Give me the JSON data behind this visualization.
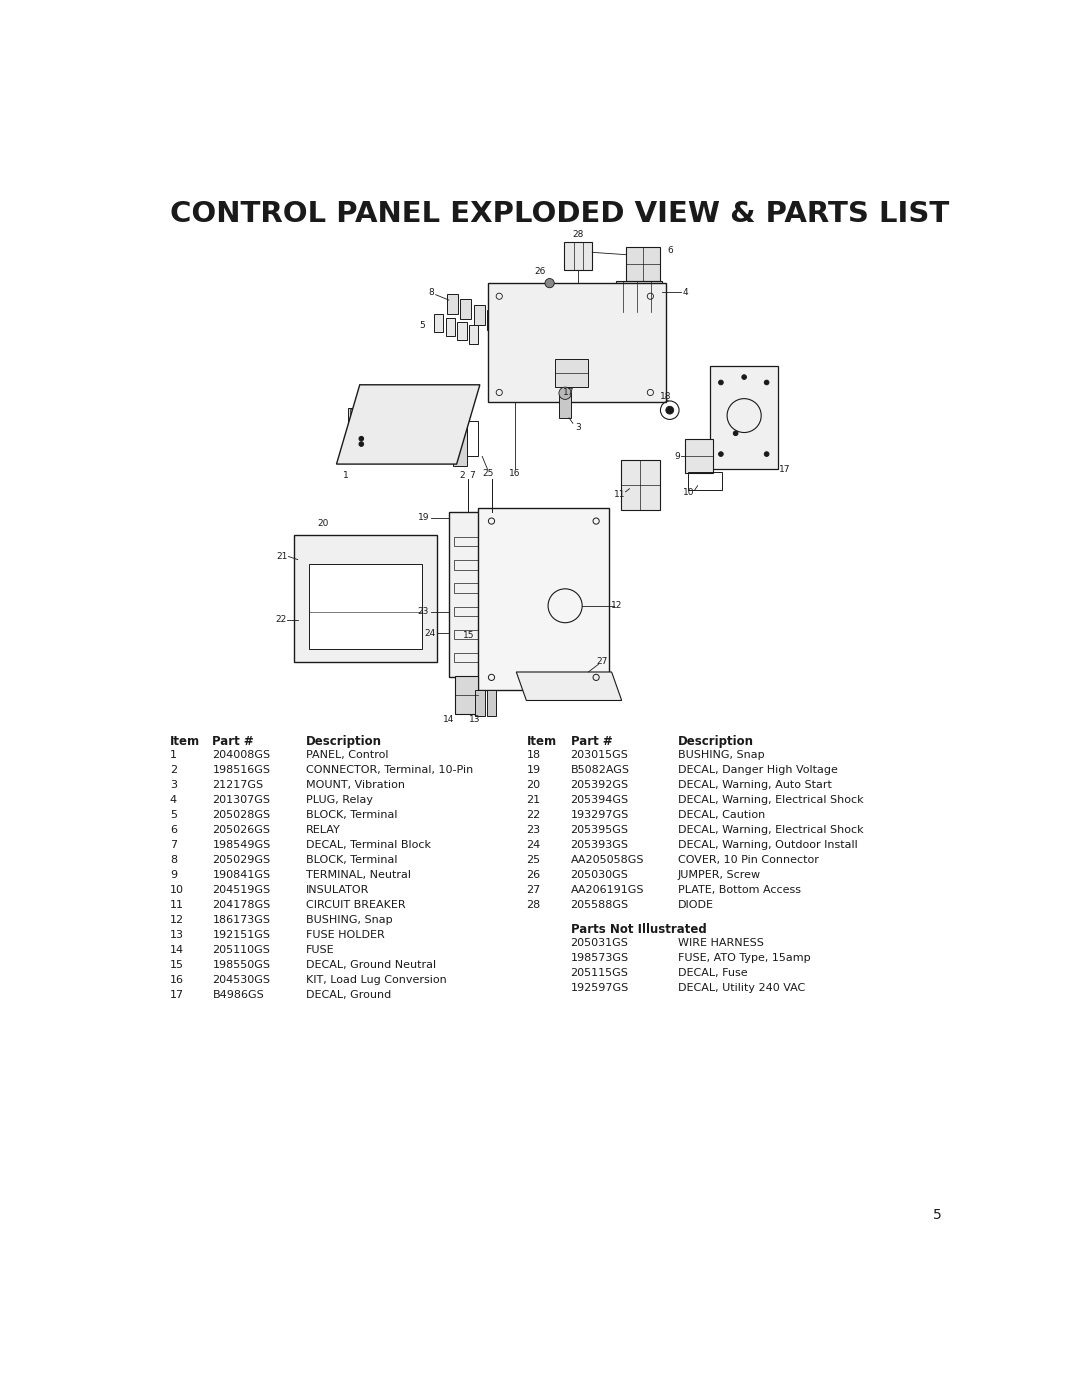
{
  "title": "CONTROL PANEL EXPLODED VIEW & PARTS LIST",
  "title_fontsize": 21,
  "title_fontweight": "bold",
  "background_color": "#ffffff",
  "text_color": "#1a1a1a",
  "page_number": "5",
  "left_table": [
    [
      "1",
      "204008GS",
      "PANEL, Control"
    ],
    [
      "2",
      "198516GS",
      "CONNECTOR, Terminal, 10-Pin"
    ],
    [
      "3",
      "21217GS",
      "MOUNT, Vibration"
    ],
    [
      "4",
      "201307GS",
      "PLUG, Relay"
    ],
    [
      "5",
      "205028GS",
      "BLOCK, Terminal"
    ],
    [
      "6",
      "205026GS",
      "RELAY"
    ],
    [
      "7",
      "198549GS",
      "DECAL, Terminal Block"
    ],
    [
      "8",
      "205029GS",
      "BLOCK, Terminal"
    ],
    [
      "9",
      "190841GS",
      "TERMINAL, Neutral"
    ],
    [
      "10",
      "204519GS",
      "INSULATOR"
    ],
    [
      "11",
      "204178GS",
      "CIRCUIT BREAKER"
    ],
    [
      "12",
      "186173GS",
      "BUSHING, Snap"
    ],
    [
      "13",
      "192151GS",
      "FUSE HOLDER"
    ],
    [
      "14",
      "205110GS",
      "FUSE"
    ],
    [
      "15",
      "198550GS",
      "DECAL, Ground Neutral"
    ],
    [
      "16",
      "204530GS",
      "KIT, Load Lug Conversion"
    ],
    [
      "17",
      "B4986GS",
      "DECAL, Ground"
    ]
  ],
  "right_table": [
    [
      "18",
      "203015GS",
      "BUSHING, Snap"
    ],
    [
      "19",
      "B5082AGS",
      "DECAL, Danger High Voltage"
    ],
    [
      "20",
      "205392GS",
      "DECAL, Warning, Auto Start"
    ],
    [
      "21",
      "205394GS",
      "DECAL, Warning, Electrical Shock"
    ],
    [
      "22",
      "193297GS",
      "DECAL, Caution"
    ],
    [
      "23",
      "205395GS",
      "DECAL, Warning, Electrical Shock"
    ],
    [
      "24",
      "205393GS",
      "DECAL, Warning, Outdoor Install"
    ],
    [
      "25",
      "AA205058GS",
      "COVER, 10 Pin Connector"
    ],
    [
      "26",
      "205030GS",
      "JUMPER, Screw"
    ],
    [
      "27",
      "AA206191GS",
      "PLATE, Bottom Access"
    ],
    [
      "28",
      "205588GS",
      "DIODE"
    ]
  ],
  "parts_not_illustrated_header": "Parts Not Illustrated",
  "parts_not_illustrated": [
    [
      "205031GS",
      "WIRE HARNESS"
    ],
    [
      "198573GS",
      "FUSE, ATO Type, 15amp"
    ],
    [
      "205115GS",
      "DECAL, Fuse"
    ],
    [
      "192597GS",
      "DECAL, Utility 240 VAC"
    ]
  ]
}
